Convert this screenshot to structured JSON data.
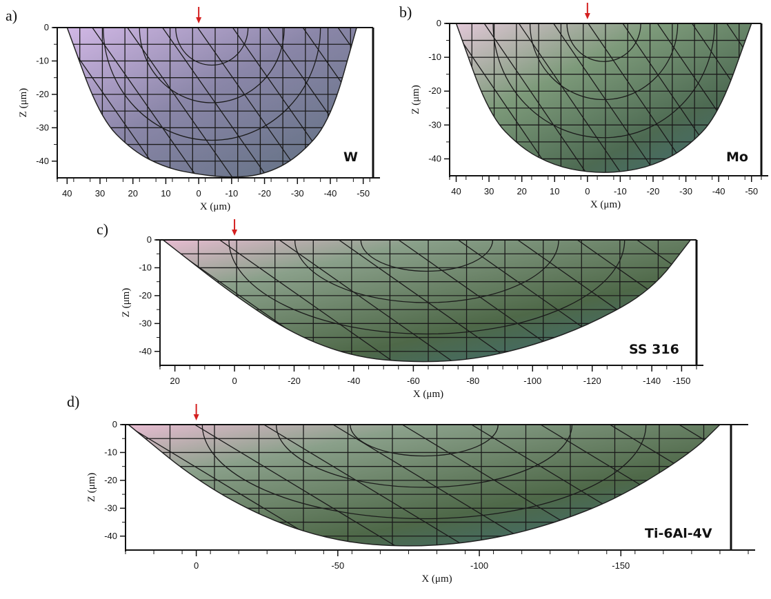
{
  "chart_data": [
    {
      "type": "area",
      "panel_label": "a)",
      "material": "W",
      "xlabel": "X (μm)",
      "ylabel": "Z (μm)",
      "x_ticks": [
        40,
        30,
        20,
        10,
        0,
        -10,
        -20,
        -30,
        -40,
        -50
      ],
      "y_ticks": [
        0,
        -10,
        -20,
        -30,
        -40
      ],
      "xlim": [
        43,
        -53
      ],
      "ylim": [
        -45,
        0
      ],
      "arrow_x": 0,
      "profile": {
        "x": [
          40,
          30,
          20,
          10,
          0,
          -10,
          -20,
          -30,
          -40,
          -48
        ],
        "z": [
          0,
          -27,
          -37,
          -42,
          -44,
          -45,
          -44,
          -39,
          -28,
          0
        ]
      }
    },
    {
      "type": "area",
      "panel_label": "b)",
      "material": "Mo",
      "xlabel": "X (μm)",
      "ylabel": "Z (μm)",
      "x_ticks": [
        40,
        30,
        20,
        10,
        0,
        -10,
        -20,
        -30,
        -40,
        -50
      ],
      "y_ticks": [
        0,
        -10,
        -20,
        -30,
        -40
      ],
      "xlim": [
        42,
        -53
      ],
      "ylim": [
        -45,
        0
      ],
      "arrow_x": 0,
      "profile": {
        "x": [
          40,
          30,
          20,
          10,
          0,
          -10,
          -20,
          -30,
          -40,
          -50
        ],
        "z": [
          0,
          -27,
          -37,
          -42,
          -44,
          -44,
          -42,
          -37,
          -27,
          0
        ]
      }
    },
    {
      "type": "area",
      "panel_label": "c)",
      "material": "SS 316",
      "xlabel": "X (μm)",
      "ylabel": "Z (μm)",
      "x_ticks": [
        20,
        0,
        -20,
        -40,
        -60,
        -80,
        -100,
        -120,
        -140,
        -150
      ],
      "y_ticks": [
        0,
        -10,
        -20,
        -30,
        -40
      ],
      "xlim": [
        25,
        -155
      ],
      "ylim": [
        -45,
        0
      ],
      "arrow_x": 0,
      "profile": {
        "x": [
          24,
          0,
          -20,
          -40,
          -60,
          -80,
          -100,
          -120,
          -140,
          -153
        ],
        "z": [
          0,
          -20,
          -34,
          -42,
          -44,
          -43,
          -38,
          -30,
          -18,
          0
        ]
      }
    },
    {
      "type": "area",
      "panel_label": "d)",
      "material": "Ti-6Al-4V",
      "xlabel": "X (μm)",
      "ylabel": "Z (μm)",
      "x_ticks": [
        0,
        -50,
        -100,
        -150
      ],
      "y_ticks": [
        0,
        -10,
        -20,
        -30,
        -40
      ],
      "xlim": [
        25,
        -195
      ],
      "ylim": [
        -45,
        0
      ],
      "arrow_x": 0,
      "profile": {
        "x": [
          24,
          0,
          -25,
          -50,
          -75,
          -100,
          -125,
          -150,
          -175,
          -185
        ],
        "z": [
          0,
          -20,
          -34,
          -42,
          -44,
          -42,
          -36,
          -26,
          -10,
          0
        ]
      }
    }
  ]
}
